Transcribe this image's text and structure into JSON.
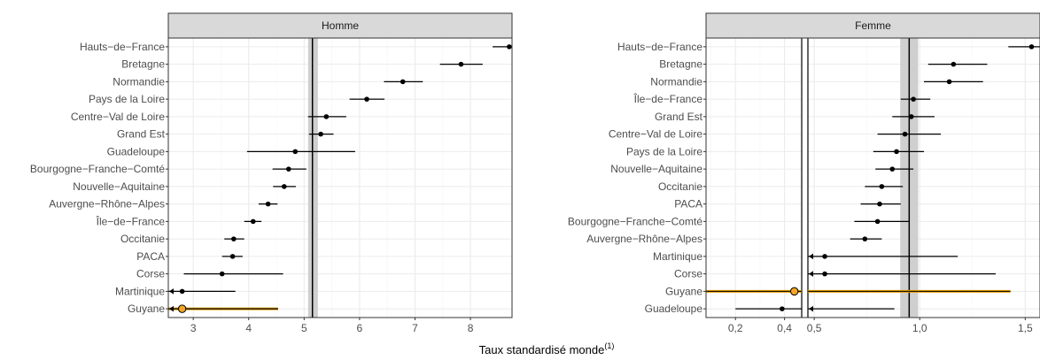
{
  "x_axis_title": "Taux standardisé monde",
  "x_axis_title_sup": "(1)",
  "chart_data": [
    {
      "type": "scatter",
      "subtype": "forest-plot-with-confidence-intervals",
      "panel": "Homme",
      "xlim": [
        2.55,
        8.75
      ],
      "x_ticks": [
        3,
        4,
        5,
        6,
        7,
        8
      ],
      "x_tick_labels": [
        "3",
        "4",
        "5",
        "6",
        "7",
        "8"
      ],
      "reference": {
        "value": 5.15,
        "ci": [
          5.12,
          5.2
        ]
      },
      "grid": true,
      "categories": [
        "Hauts−de−France",
        "Bretagne",
        "Normandie",
        "Pays de la Loire",
        "Centre−Val de Loire",
        "Grand Est",
        "Guadeloupe",
        "Bourgogne−Franche−Comté",
        "Nouvelle−Aquitaine",
        "Auvergne−Rhône−Alpes",
        "Île−de−France",
        "Occitanie",
        "PACA",
        "Corse",
        "Martinique",
        "Guyane"
      ],
      "points": [
        {
          "label": "Hauts−de−France",
          "value": 8.7,
          "low": 8.4,
          "high": 8.75,
          "clip_high": true
        },
        {
          "label": "Bretagne",
          "value": 7.83,
          "low": 7.45,
          "high": 8.22
        },
        {
          "label": "Normandie",
          "value": 6.78,
          "low": 6.44,
          "high": 7.14
        },
        {
          "label": "Pays de la Loire",
          "value": 6.13,
          "low": 5.82,
          "high": 6.45
        },
        {
          "label": "Centre−Val de Loire",
          "value": 5.4,
          "low": 5.07,
          "high": 5.76
        },
        {
          "label": "Grand Est",
          "value": 5.3,
          "low": 5.09,
          "high": 5.53
        },
        {
          "label": "Guadeloupe",
          "value": 4.84,
          "low": 3.97,
          "high": 5.92
        },
        {
          "label": "Bourgogne−Franche−Comté",
          "value": 4.72,
          "low": 4.43,
          "high": 5.04
        },
        {
          "label": "Nouvelle−Aquitaine",
          "value": 4.64,
          "low": 4.44,
          "high": 4.85
        },
        {
          "label": "Auvergne−Rhône−Alpes",
          "value": 4.35,
          "low": 4.18,
          "high": 4.52
        },
        {
          "label": "Île−de−France",
          "value": 4.08,
          "low": 3.92,
          "high": 4.23
        },
        {
          "label": "Occitanie",
          "value": 3.73,
          "low": 3.56,
          "high": 3.92
        },
        {
          "label": "PACA",
          "value": 3.71,
          "low": 3.52,
          "high": 3.89
        },
        {
          "label": "Corse",
          "value": 3.52,
          "low": 2.83,
          "high": 4.62
        },
        {
          "label": "Martinique",
          "value": 2.8,
          "low": 2.55,
          "high": 3.76,
          "clip_low": true
        },
        {
          "label": "Guyane",
          "value": 2.8,
          "low": 2.55,
          "high": 4.53,
          "clip_low": true,
          "highlight": true
        }
      ]
    },
    {
      "type": "scatter",
      "subtype": "forest-plot-with-confidence-intervals",
      "panel": "Femme",
      "scale": "broken-axis",
      "axis_break": 0.47,
      "xlim": [
        0.08,
        1.57
      ],
      "x_ticks": [
        0.2,
        0.4,
        0.5,
        1.0,
        1.5
      ],
      "x_tick_labels": [
        "0,2",
        "0,4",
        "0,5",
        "1,0",
        "1,5"
      ],
      "reference": {
        "value": 0.95,
        "ci": [
          0.92,
          0.98
        ]
      },
      "grid": true,
      "categories": [
        "Hauts−de−France",
        "Bretagne",
        "Normandie",
        "Île−de−France",
        "Grand Est",
        "Centre−Val de Loire",
        "Pays de la Loire",
        "Nouvelle−Aquitaine",
        "Occitanie",
        "PACA",
        "Bourgogne−Franche−Comté",
        "Auvergne−Rhône−Alpes",
        "Martinique",
        "Corse",
        "Guyane",
        "Guadeloupe"
      ],
      "points": [
        {
          "label": "Hauts−de−France",
          "value": 1.53,
          "low": 1.42,
          "high": 1.57,
          "clip_high": true
        },
        {
          "label": "Bretagne",
          "value": 1.16,
          "low": 1.04,
          "high": 1.32
        },
        {
          "label": "Normandie",
          "value": 1.14,
          "low": 1.02,
          "high": 1.3
        },
        {
          "label": "Île−de−France",
          "value": 0.97,
          "low": 0.91,
          "high": 1.05
        },
        {
          "label": "Grand Est",
          "value": 0.96,
          "low": 0.87,
          "high": 1.07
        },
        {
          "label": "Centre−Val de Loire",
          "value": 0.93,
          "low": 0.8,
          "high": 1.1
        },
        {
          "label": "Pays de la Loire",
          "value": 0.89,
          "low": 0.78,
          "high": 1.02
        },
        {
          "label": "Nouvelle−Aquitaine",
          "value": 0.87,
          "low": 0.79,
          "high": 0.97
        },
        {
          "label": "Occitanie",
          "value": 0.82,
          "low": 0.74,
          "high": 0.92
        },
        {
          "label": "PACA",
          "value": 0.81,
          "low": 0.72,
          "high": 0.91
        },
        {
          "label": "Bourgogne−Franche−Comté",
          "value": 0.8,
          "low": 0.69,
          "high": 0.95
        },
        {
          "label": "Auvergne−Rhône−Alpes",
          "value": 0.74,
          "low": 0.67,
          "high": 0.82
        },
        {
          "label": "Martinique",
          "value": 0.55,
          "low": 0.5,
          "high": 1.18,
          "clip_low": true
        },
        {
          "label": "Corse",
          "value": 0.55,
          "low": 0.5,
          "high": 1.36,
          "clip_low": true
        },
        {
          "label": "Guyane",
          "value": 0.44,
          "low": 0.08,
          "high": 1.43,
          "highlight": true,
          "spans_break": true
        },
        {
          "label": "Guadeloupe",
          "value": 0.39,
          "low": 0.2,
          "high": 0.88,
          "clip_low_second": true
        }
      ]
    }
  ],
  "colors": {
    "panel_border": "#333333",
    "strip_fill": "#d9d9d9",
    "grid_major": "#ebebeb",
    "grid_minor": "#f5f5f5",
    "reference_band": "#cfcfcf",
    "reference_line": "#000000",
    "point": "#000000",
    "highlight_line": "#e69f00",
    "highlight_point": "#f5a623",
    "tick_label": "#4d4d4d"
  }
}
